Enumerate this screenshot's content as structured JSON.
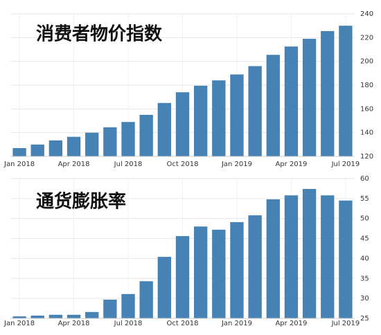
{
  "chart_data": [
    {
      "type": "bar",
      "title": "消费者物价指数",
      "categories": [
        "Jan 2018",
        null,
        null,
        "Apr 2018",
        null,
        null,
        "Jul 2018",
        null,
        null,
        "Oct 2018",
        null,
        null,
        "Jan 2019",
        null,
        null,
        "Apr 2019",
        null,
        null,
        "Jul 2019"
      ],
      "values": [
        127,
        130,
        133.5,
        136.5,
        140,
        144.5,
        149,
        155,
        165,
        174,
        179.5,
        184,
        189,
        196,
        205.5,
        212.5,
        219,
        225.5,
        230
      ],
      "color": "#4682b4",
      "ylim": [
        120,
        240
      ],
      "yticks": [
        120,
        140,
        160,
        180,
        200,
        220,
        240
      ],
      "grid": true
    },
    {
      "type": "bar",
      "title": "通货膨胀率",
      "categories": [
        "Jan 2018",
        null,
        null,
        "Apr 2018",
        null,
        null,
        "Jul 2018",
        null,
        null,
        "Oct 2018",
        null,
        null,
        "Jan 2019",
        null,
        null,
        "Apr 2019",
        null,
        null,
        "Jul 2019"
      ],
      "values": [
        25.5,
        25.7,
        25.9,
        25.9,
        26.6,
        29.7,
        31.1,
        34.3,
        40.4,
        45.6,
        48,
        47.2,
        49.1,
        50.8,
        54.8,
        55.8,
        57.4,
        55.8,
        54.5
      ],
      "color": "#4682b4",
      "ylim": [
        25,
        60
      ],
      "yticks": [
        25,
        30,
        35,
        40,
        45,
        50,
        55,
        60
      ],
      "grid": true
    }
  ]
}
